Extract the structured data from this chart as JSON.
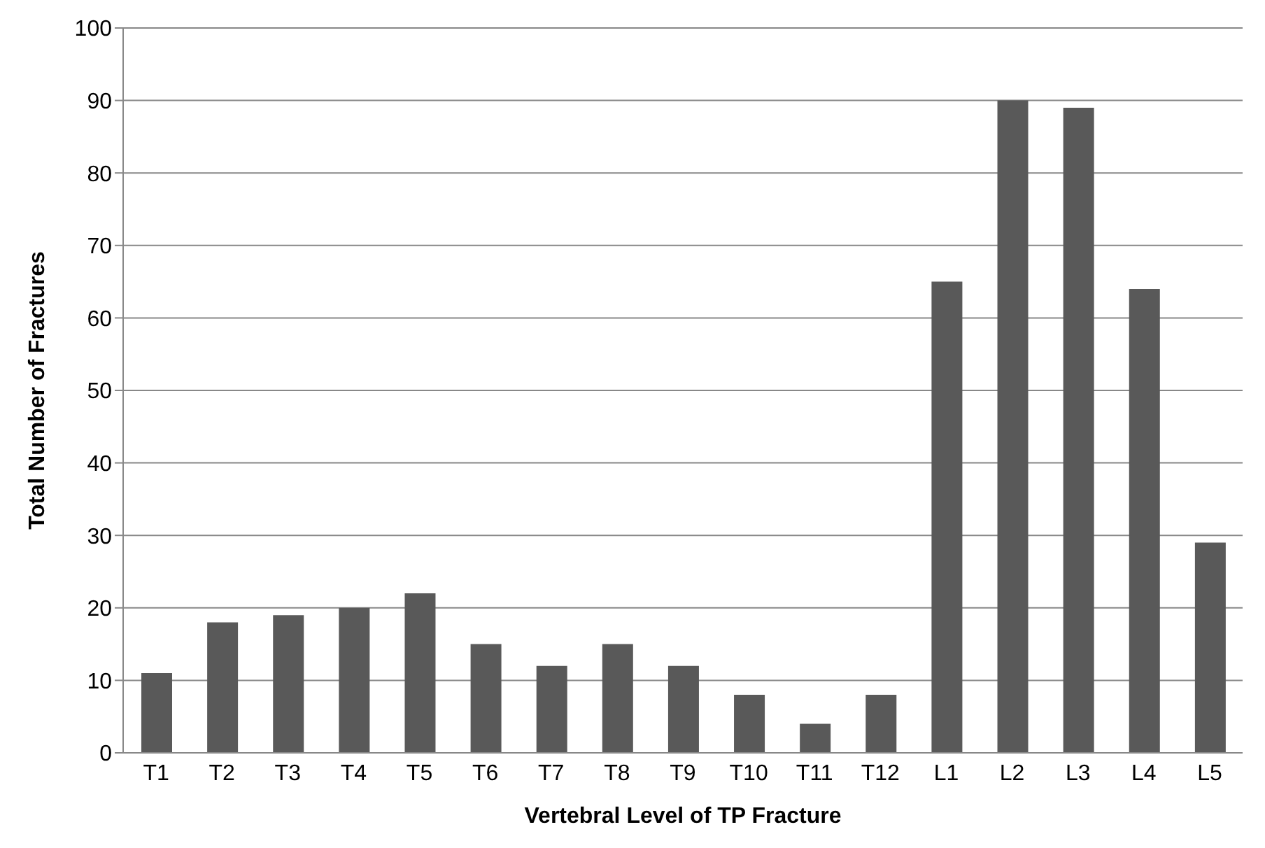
{
  "chart_data": {
    "type": "bar",
    "xlabel": "Vertebral Level of TP Fracture",
    "ylabel": "Total Number of Fractures",
    "categories": [
      "T1",
      "T2",
      "T3",
      "T4",
      "T5",
      "T6",
      "T7",
      "T8",
      "T9",
      "T10",
      "T11",
      "T12",
      "L1",
      "L2",
      "L3",
      "L4",
      "L5"
    ],
    "values": [
      11,
      18,
      19,
      20,
      22,
      15,
      12,
      15,
      12,
      8,
      4,
      8,
      65,
      90,
      89,
      64,
      29
    ],
    "color": "#595959",
    "ylim": [
      0,
      100
    ],
    "yticks": [
      0,
      10,
      20,
      30,
      40,
      50,
      60,
      70,
      80,
      90,
      100
    ],
    "grid": "y",
    "legend": false
  }
}
